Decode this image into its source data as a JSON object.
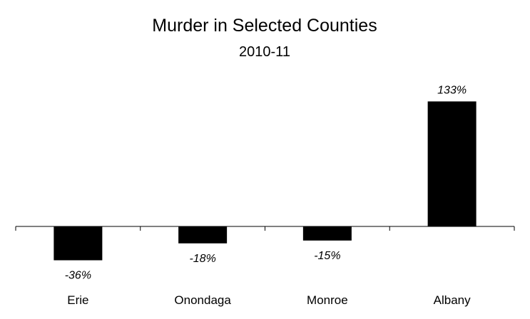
{
  "chart_data": {
    "type": "bar",
    "title": "Murder in Selected Counties",
    "subtitle": "2010-11",
    "categories": [
      "Erie",
      "Onondaga",
      "Monroe",
      "Albany"
    ],
    "values": [
      -36,
      -18,
      -15,
      133
    ],
    "data_labels": [
      "-36%",
      "-18%",
      "-15%",
      "133%"
    ],
    "unit": "%",
    "xlabel": "",
    "ylabel": "",
    "ylim": [
      -36,
      133
    ],
    "grid": false,
    "legend": "none",
    "colors": {
      "bar": "#000000",
      "axis": "#000000",
      "background": "#ffffff"
    }
  }
}
